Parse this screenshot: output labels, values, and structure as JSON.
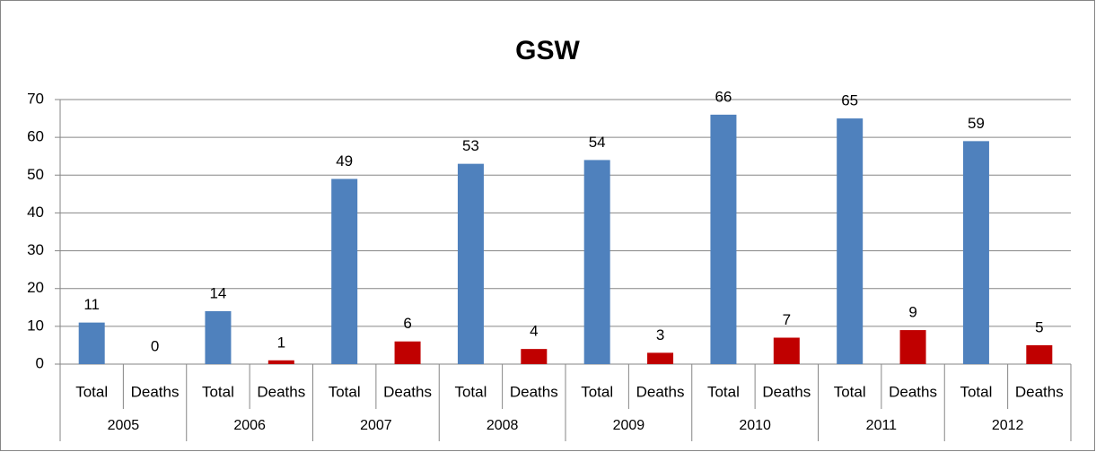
{
  "chart_data": {
    "type": "bar",
    "title": "GSW",
    "categories": [
      "Total",
      "Deaths",
      "Total",
      "Deaths",
      "Total",
      "Deaths",
      "Total",
      "Deaths",
      "Total",
      "Deaths",
      "Total",
      "Deaths",
      "Total",
      "Deaths",
      "Total",
      "Deaths"
    ],
    "groups": [
      "2005",
      "2006",
      "2007",
      "2008",
      "2009",
      "2010",
      "2011",
      "2012"
    ],
    "values": [
      11,
      0,
      14,
      1,
      49,
      6,
      53,
      4,
      54,
      3,
      66,
      7,
      65,
      9,
      59,
      5
    ],
    "colors": [
      "#4f81bd",
      "#c00000",
      "#4f81bd",
      "#c00000",
      "#4f81bd",
      "#c00000",
      "#4f81bd",
      "#c00000",
      "#4f81bd",
      "#c00000",
      "#4f81bd",
      "#c00000",
      "#4f81bd",
      "#c00000",
      "#4f81bd",
      "#c00000"
    ],
    "ylim": [
      0,
      70
    ],
    "yticks": [
      0,
      10,
      20,
      30,
      40,
      50,
      60,
      70
    ],
    "grid": true
  }
}
